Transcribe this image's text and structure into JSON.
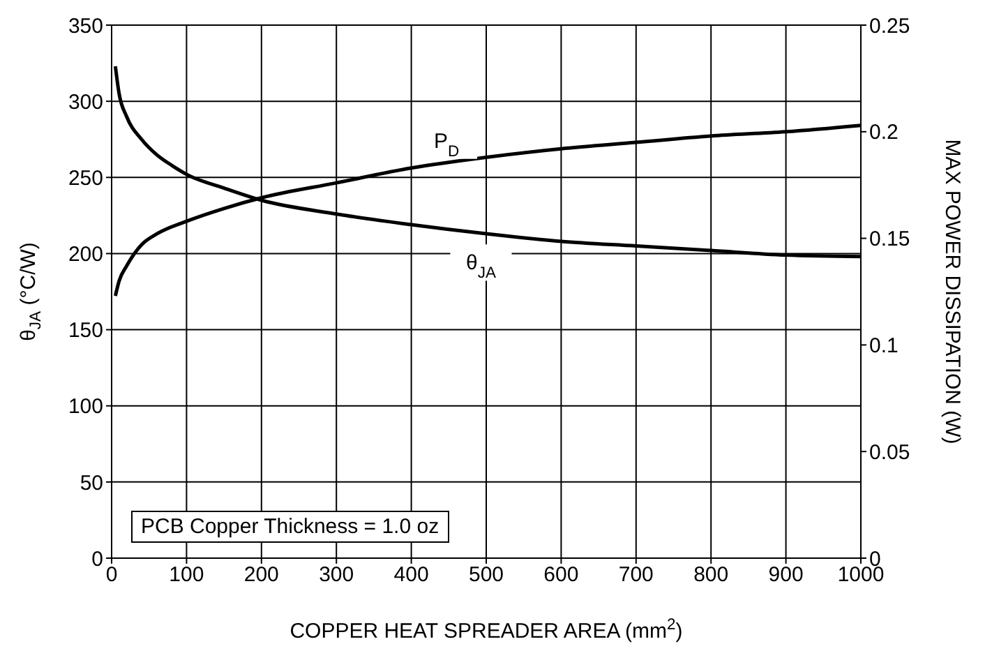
{
  "chart_data": {
    "type": "line",
    "xlabel": "COPPER HEAT SPREADER AREA (mm$^{2}$)",
    "ylabel": "θ$_{JA}$ (°C/W)",
    "y2label": "MAX POWER DISSIPATION (W)",
    "xlim": [
      0,
      1000
    ],
    "xticks": [
      0,
      100,
      200,
      300,
      400,
      500,
      600,
      700,
      800,
      900,
      1000
    ],
    "ylim": [
      0,
      350
    ],
    "yticks": [
      0,
      50,
      100,
      150,
      200,
      250,
      300,
      350
    ],
    "y2lim": [
      0,
      0.25
    ],
    "y2ticks": [
      0,
      0.05,
      0.1,
      0.15,
      0.2,
      0.25
    ],
    "grid": true,
    "legend": false,
    "marker": "none",
    "line_style": "solid",
    "series": [
      {
        "color": "#000000",
        "x": [
          5,
          10,
          20,
          40,
          60,
          80,
          100,
          150,
          200,
          300,
          400,
          500,
          600,
          700,
          800,
          900,
          1000
        ],
        "values": [
          323,
          305,
          290,
          275,
          265,
          258,
          252,
          243,
          235,
          226,
          219,
          213,
          208,
          205,
          202,
          199,
          198
        ]
      },
      {
        "color": "#000000",
        "axis": "y2",
        "x": [
          5,
          10,
          20,
          40,
          60,
          100,
          150,
          200,
          300,
          400,
          500,
          600,
          700,
          800,
          900,
          1000
        ],
        "values": [
          0.123,
          0.13,
          0.137,
          0.147,
          0.152,
          0.158,
          0.164,
          0.169,
          0.176,
          0.183,
          0.188,
          0.192,
          0.195,
          0.198,
          0.2,
          0.203
        ]
      }
    ],
    "annotations": [
      {
        "text": "P$_{D}$",
        "x": 447,
        "y": 275
      },
      {
        "text": "θ$_{JA}$",
        "x": 493,
        "y": 195
      },
      "PCB Copper Thickness = 1.0 oz"
    ]
  }
}
